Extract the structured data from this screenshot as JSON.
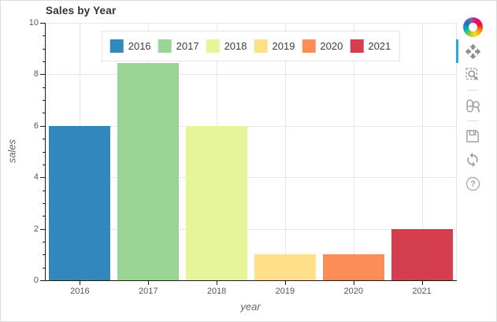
{
  "chart_data": {
    "type": "bar",
    "title": "Sales by Year",
    "xlabel": "year",
    "ylabel": "sales",
    "categories": [
      "2016",
      "2017",
      "2018",
      "2019",
      "2020",
      "2021"
    ],
    "values": [
      6,
      8.45,
      6,
      1,
      1,
      2
    ],
    "bar_colors": [
      "#3288bd",
      "#99d594",
      "#e6f598",
      "#fee08b",
      "#fc8d59",
      "#d53e4f"
    ],
    "bar_width_fraction": 0.9,
    "ylim": [
      0,
      10
    ],
    "y_major_ticks": [
      0,
      2,
      4,
      6,
      8,
      10
    ],
    "y_minor_tick_step": 0.5,
    "grid": true,
    "legend": {
      "position": "top-center",
      "entries": [
        "2016",
        "2017",
        "2018",
        "2019",
        "2020",
        "2021"
      ]
    }
  },
  "toolbar": {
    "logo": "bokeh-logo",
    "accent_color": "#26aae1",
    "active_tool": "pan",
    "tools": [
      {
        "name": "pan",
        "icon": "pan-icon",
        "active": true,
        "group_end": false
      },
      {
        "name": "box-zoom",
        "icon": "box-zoom-icon",
        "active": false,
        "group_end": true
      },
      {
        "name": "wheel-zoom",
        "icon": "wheel-zoom-icon",
        "active": false,
        "group_end": true
      },
      {
        "name": "save",
        "icon": "save-icon",
        "active": false,
        "group_end": false
      },
      {
        "name": "reset",
        "icon": "reset-icon",
        "active": false,
        "group_end": false
      },
      {
        "name": "help",
        "icon": "help-icon",
        "active": false,
        "group_end": false
      }
    ]
  },
  "theme": {
    "grid_color": "#e6e6e6",
    "axis_color": "#1c1c1c",
    "outline_color": "#e5e5e5",
    "tick_label_color": "#575757",
    "title_color": "#333333",
    "axis_label_color": "#666666",
    "icon_color": "#9b9b9b"
  }
}
